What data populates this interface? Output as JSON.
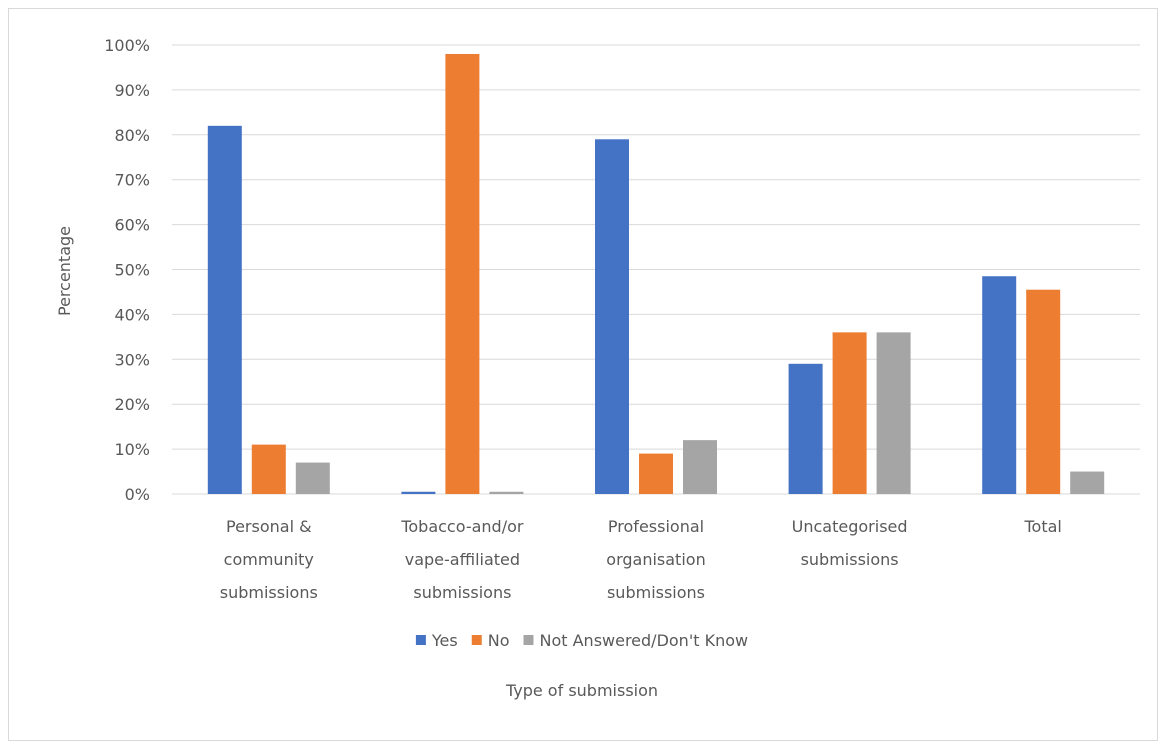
{
  "chart_data": {
    "type": "bar",
    "categories": [
      [
        "Personal &",
        "community",
        "submissions"
      ],
      [
        "Tobacco-and/or",
        "vape-affiliated",
        "submissions"
      ],
      [
        "Professional",
        "organisation",
        "submissions"
      ],
      [
        "Uncategorised",
        "submissions"
      ],
      [
        "Total"
      ]
    ],
    "series": [
      {
        "name": "Yes",
        "color": "#4472c4",
        "values": [
          82,
          0.5,
          79,
          29,
          48.5
        ]
      },
      {
        "name": "No",
        "color": "#ed7d31",
        "values": [
          11,
          98,
          9,
          36,
          45.5
        ]
      },
      {
        "name": "Not Answered/Don't Know",
        "color": "#a5a5a5",
        "values": [
          7,
          0.5,
          12,
          36,
          5
        ]
      }
    ],
    "xlabel": "Type of submission",
    "ylabel": "Percentage",
    "ylim": [
      0,
      100
    ],
    "yticks": [
      "0%",
      "10%",
      "20%",
      "30%",
      "40%",
      "50%",
      "60%",
      "70%",
      "80%",
      "90%",
      "100%"
    ],
    "grid": true,
    "gridline_color": "#d9d9d9",
    "legend_position": "bottom"
  }
}
